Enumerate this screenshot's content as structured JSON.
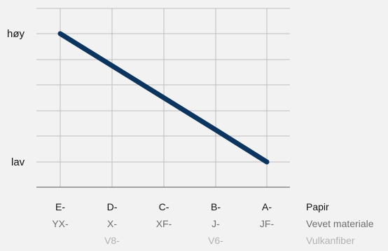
{
  "chart_data": {
    "type": "line",
    "categories": [
      "E-",
      "D-",
      "C-",
      "B-",
      "A-"
    ],
    "category_rows": [
      {
        "label": "Papir",
        "ticks": [
          "E-",
          "D-",
          "C-",
          "B-",
          "A-"
        ]
      },
      {
        "label": "Vevet materiale",
        "ticks": [
          "YX-",
          "X-",
          "XF-",
          "J-",
          "JF-"
        ]
      },
      {
        "label": "Vulkanfiber",
        "ticks": [
          "",
          "V8-",
          "",
          "V6-",
          ""
        ]
      }
    ],
    "y_tick_labels": {
      "top": "høy",
      "bottom": "lav"
    },
    "ylim": [
      0,
      1
    ],
    "series": [
      {
        "values": [
          1,
          0.75,
          0.5,
          0.25,
          0
        ]
      }
    ],
    "grid": true,
    "legend": "none",
    "colors": {
      "background": "#f2f2f2",
      "grid": "#bdbdbd",
      "axis": "#8a8a8a",
      "line": "#0b355f",
      "text": "#111111",
      "muted_text": "#6e6e6e",
      "light_text": "#b2b2b2"
    }
  }
}
